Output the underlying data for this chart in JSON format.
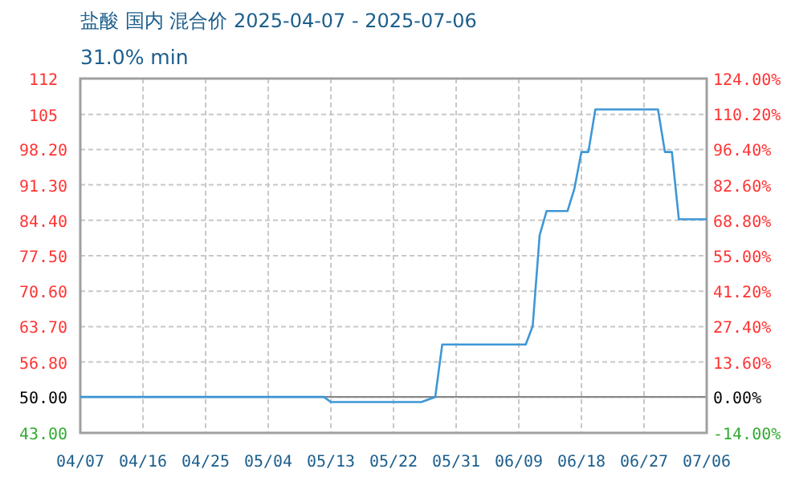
{
  "chart_data": {
    "type": "line",
    "title": "盐酸 国内 混合价 2025-04-07 - 2025-07-06",
    "subtitle": "31.0% min",
    "x": [
      "2025-04-07",
      "2025-05-12",
      "2025-05-13",
      "2025-05-26",
      "2025-05-28",
      "2025-05-29",
      "2025-06-10",
      "2025-06-11",
      "2025-06-12",
      "2025-06-13",
      "2025-06-16",
      "2025-06-17",
      "2025-06-18",
      "2025-06-19",
      "2025-06-20",
      "2025-06-29",
      "2025-06-30",
      "2025-07-01",
      "2025-07-02",
      "2025-07-06"
    ],
    "series": [
      {
        "color": "#3d97d6",
        "values": [
          50,
          50,
          49,
          49,
          50,
          60.2,
          60.2,
          63.8,
          81.5,
          86.2,
          86.2,
          90.6,
          97.7,
          97.7,
          106,
          106,
          97.7,
          97.7,
          84.6,
          84.6
        ]
      }
    ],
    "xlim": [
      "2025-04-07",
      "2025-07-06"
    ],
    "xticks": [
      {
        "value": "2025-04-07",
        "label": "04/07"
      },
      {
        "value": "2025-04-16",
        "label": "04/16"
      },
      {
        "value": "2025-04-25",
        "label": "04/25"
      },
      {
        "value": "2025-05-04",
        "label": "05/04"
      },
      {
        "value": "2025-05-13",
        "label": "05/13"
      },
      {
        "value": "2025-05-22",
        "label": "05/22"
      },
      {
        "value": "2025-05-31",
        "label": "05/31"
      },
      {
        "value": "2025-06-09",
        "label": "06/09"
      },
      {
        "value": "2025-06-18",
        "label": "06/18"
      },
      {
        "value": "2025-06-27",
        "label": "06/27"
      },
      {
        "value": "2025-07-06",
        "label": "07/06"
      }
    ],
    "ylim": [
      43,
      112
    ],
    "yticks": [
      {
        "value": 43,
        "label": "43.00"
      },
      {
        "value": 50,
        "label": "50.00"
      },
      {
        "value": 56.8,
        "label": "56.80"
      },
      {
        "value": 63.7,
        "label": "63.70"
      },
      {
        "value": 70.6,
        "label": "70.60"
      },
      {
        "value": 77.5,
        "label": "77.50"
      },
      {
        "value": 84.4,
        "label": "84.40"
      },
      {
        "value": 91.3,
        "label": "91.30"
      },
      {
        "value": 98.2,
        "label": "98.20"
      },
      105,
      112
    ],
    "y2lim": [
      -14,
      124
    ],
    "y2ticks": [
      {
        "value": -14,
        "label": "-14.00%"
      },
      {
        "value": 0,
        "label": "0.00%"
      },
      {
        "value": 13.6,
        "label": "13.60%"
      },
      {
        "value": 27.4,
        "label": "27.40%"
      },
      {
        "value": 41.2,
        "label": "41.20%"
      },
      {
        "value": 55,
        "label": "55.00%"
      },
      {
        "value": 68.8,
        "label": "68.80%"
      },
      {
        "value": 82.6,
        "label": "82.60%"
      },
      {
        "value": 96.4,
        "label": "96.40%"
      },
      {
        "value": 110.2,
        "label": "110.20%"
      },
      {
        "value": 124,
        "label": "124.00%"
      }
    ],
    "ref_lines": [
      {
        "axis": "y",
        "value": 50,
        "color": "#888888"
      }
    ],
    "grid": true,
    "marker": "none",
    "line_style": "solid"
  }
}
